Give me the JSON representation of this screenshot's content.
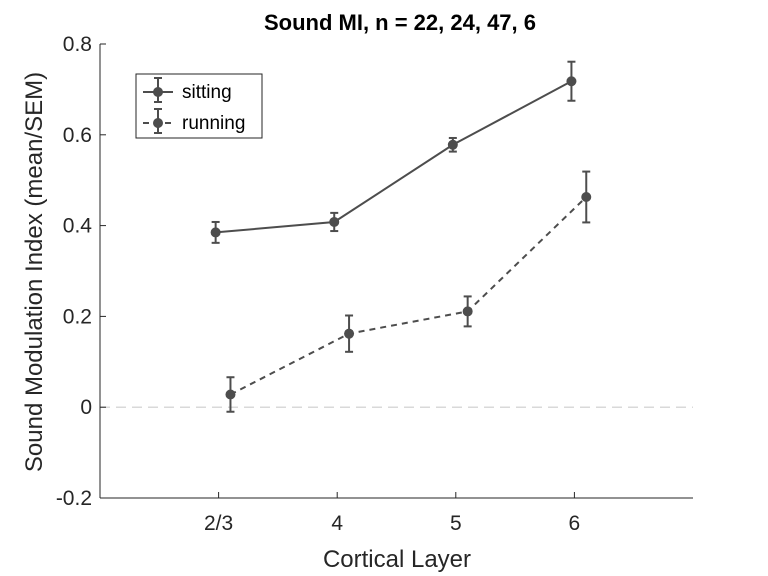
{
  "chart_data": {
    "type": "line",
    "title": "Sound MI, n = 22, 24, 47, 6",
    "xlabel": "Cortical Layer",
    "ylabel": "Sound Modulation Index (mean/SEM)",
    "categories": [
      "2/3",
      "4",
      "5",
      "6"
    ],
    "ylim": [
      -0.2,
      0.8
    ],
    "yticks": [
      -0.2,
      0,
      0.2,
      0.4,
      0.6,
      0.8
    ],
    "ytick_labels": [
      "-0.2",
      "0",
      "0.2",
      "0.4",
      "0.6",
      "0.8"
    ],
    "reference_line": {
      "y": 0,
      "style": "dashed",
      "color": "#d9d9d9"
    },
    "legend_position": "top-left",
    "grid": false,
    "series": [
      {
        "name": "sitting",
        "line_style": "solid",
        "color": "#4d4d4d",
        "x_offset": -0.025,
        "values": [
          0.385,
          0.408,
          0.578,
          0.718
        ],
        "errors": [
          0.023,
          0.02,
          0.015,
          0.043
        ]
      },
      {
        "name": "running",
        "line_style": "dashed",
        "color": "#4d4d4d",
        "x_offset": 0.1,
        "values": [
          0.028,
          0.162,
          0.211,
          0.463
        ],
        "errors": [
          0.038,
          0.04,
          0.033,
          0.056
        ]
      }
    ]
  }
}
